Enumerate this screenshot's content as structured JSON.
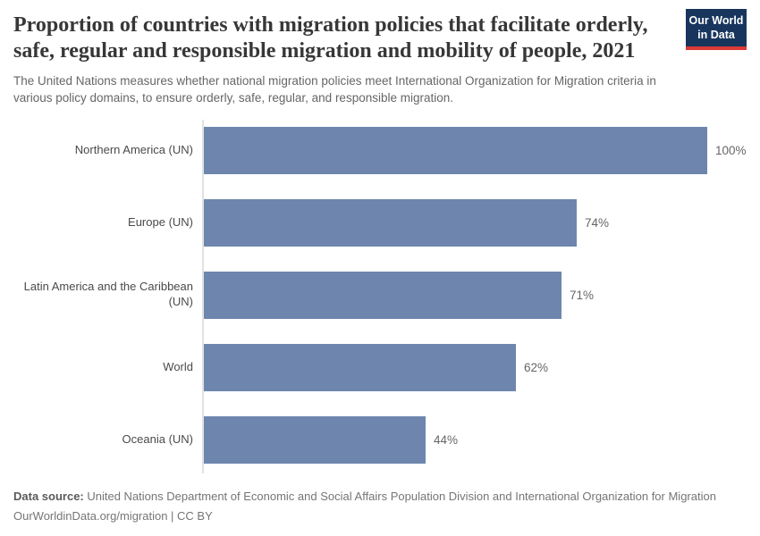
{
  "header": {
    "title": "Proportion of countries with migration policies that facilitate orderly, safe, regular and responsible migration and mobility of people, 2021",
    "subtitle": "The United Nations measures whether national migration policies meet International Organization for Migration criteria in various policy domains, to ensure orderly, safe, regular, and responsible migration.",
    "logo": {
      "line1": "Our World",
      "line2": "in Data"
    }
  },
  "chart_data": {
    "type": "bar",
    "orientation": "horizontal",
    "title": "Proportion of countries with migration policies that facilitate orderly, safe, regular and responsible migration and mobility of people, 2021",
    "categories": [
      "Northern America (UN)",
      "Europe (UN)",
      "Latin America and the Caribbean (UN)",
      "World",
      "Oceania (UN)"
    ],
    "values": [
      100,
      74,
      71,
      62,
      44
    ],
    "value_labels": [
      "100%",
      "74%",
      "71%",
      "62%",
      "44%"
    ],
    "unit": "%",
    "xlim": [
      0,
      100
    ],
    "grid": false,
    "legend": "none",
    "bar_color": "#6e86ad",
    "axis_color": "#e2e2e2",
    "category_label_color": "#4a4a4a",
    "value_label_color": "#666666"
  },
  "footer": {
    "source_label": "Data source:",
    "source_text": " United Nations Department of Economic and Social Affairs Population Division and International Organization for Migration",
    "link_line": "OurWorldinData.org/migration | CC BY"
  },
  "colors": {
    "logo_background": "#18365d",
    "logo_accent_red": "#dc3a34",
    "title_text": "#373737",
    "subtitle_text": "#666666"
  }
}
